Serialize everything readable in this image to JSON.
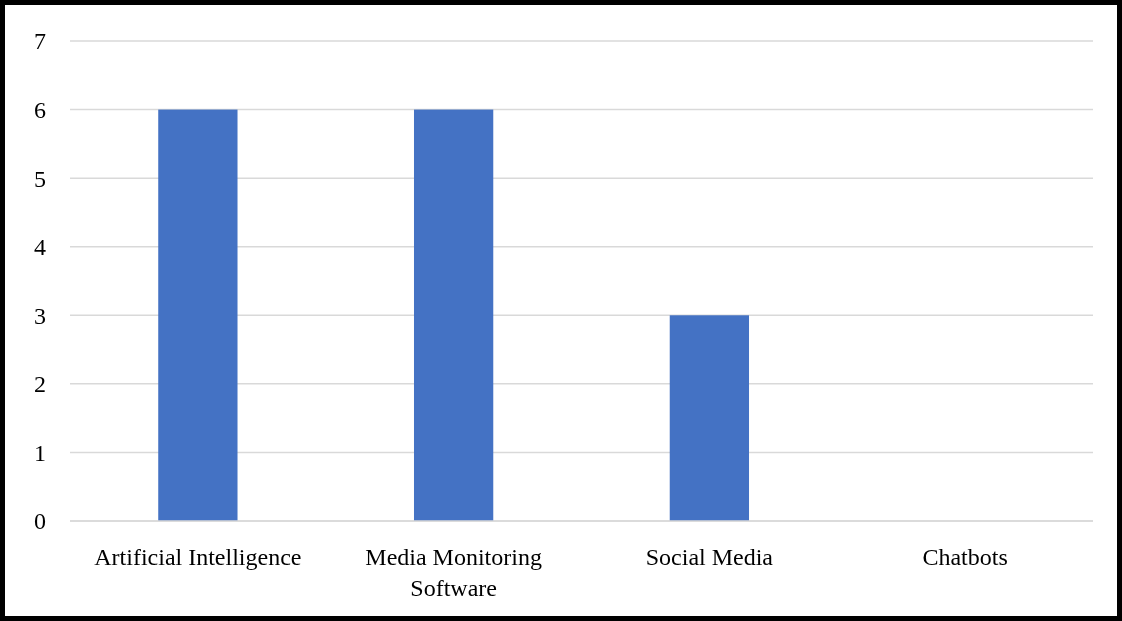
{
  "chart_data": {
    "type": "bar",
    "categories": [
      "Artificial Intelligence",
      "Media Monitoring Software",
      "Social Media",
      "Chatbots"
    ],
    "values": [
      6,
      6,
      3,
      0
    ],
    "color": "#4472c4",
    "ylim": [
      0,
      7
    ],
    "yticks": [
      0,
      1,
      2,
      3,
      4,
      5,
      6,
      7
    ],
    "grid": "y"
  }
}
